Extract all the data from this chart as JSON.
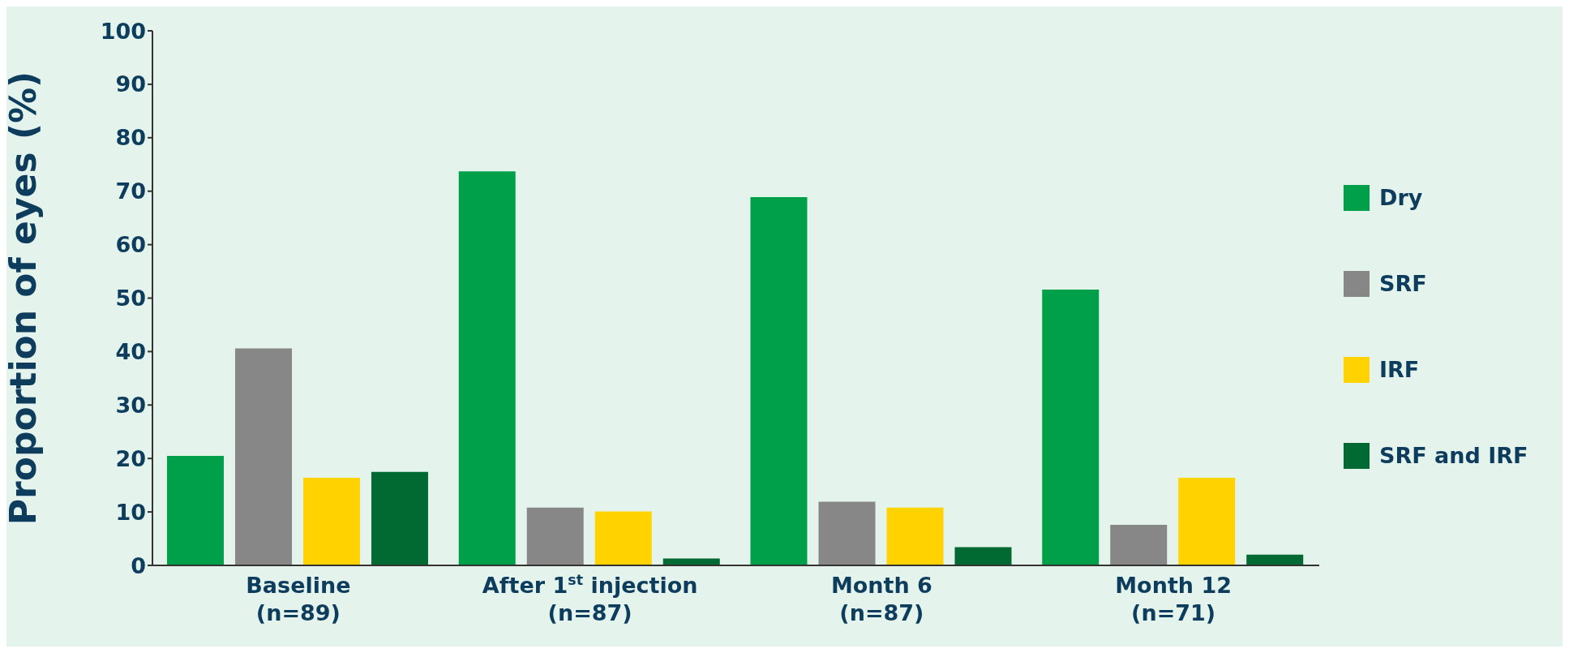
{
  "chart_data": {
    "type": "bar",
    "ylabel": "Proportion of eyes (%)",
    "categories": [
      "Baseline\n(n=89)",
      "After 1$^{st}$ injection\n(n=87)",
      "Month 6\n(n=87)",
      "Month 12\n(n=71)"
    ],
    "series": [
      {
        "name": "Dry",
        "color": "#00a04b",
        "values": [
          20.5,
          73.7,
          68.9,
          51.6
        ]
      },
      {
        "name": "SRF",
        "color": "#878787",
        "values": [
          40.6,
          10.8,
          11.9,
          7.6
        ]
      },
      {
        "name": "IRF",
        "color": "#ffd200",
        "values": [
          16.4,
          10.1,
          10.8,
          16.4
        ]
      },
      {
        "name": "SRF and IRF",
        "color": "#006a32",
        "values": [
          17.5,
          1.3,
          3.4,
          2.0
        ]
      }
    ],
    "ylim": [
      0,
      100
    ],
    "yticks": [
      0,
      10,
      20,
      30,
      40,
      50,
      60,
      70,
      80,
      90,
      100
    ],
    "grid": false,
    "legend": "right"
  }
}
